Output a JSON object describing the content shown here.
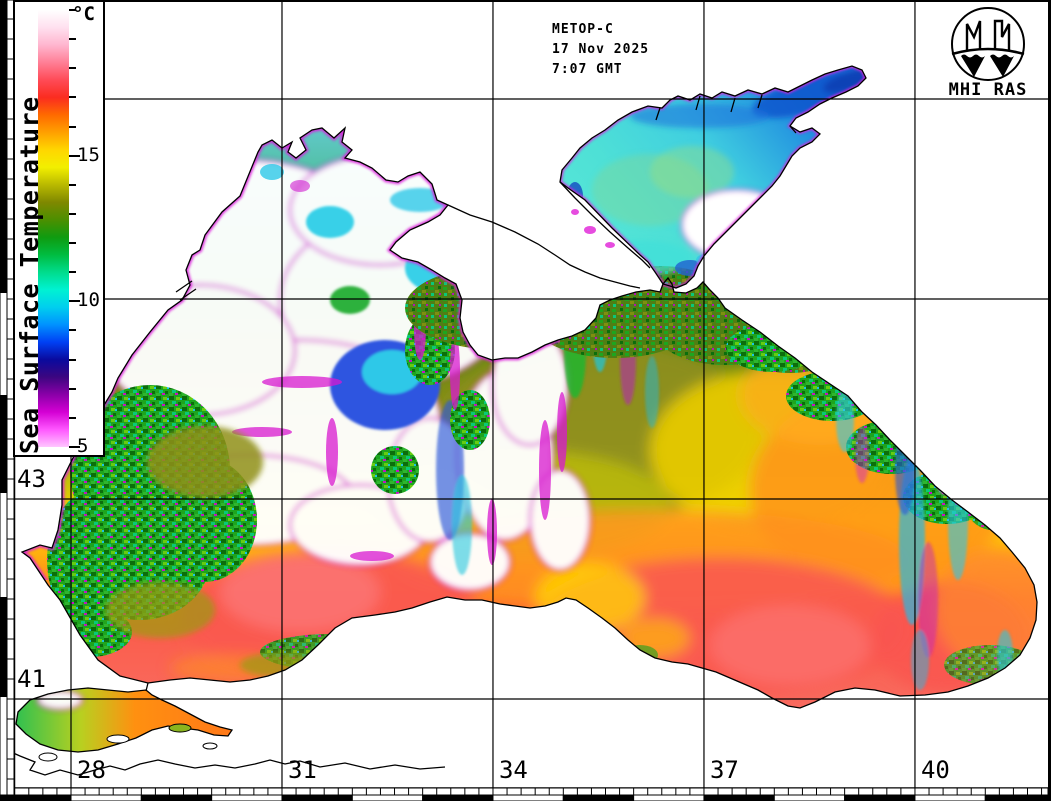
{
  "header": {
    "line1": "METOP-C",
    "line2": "17 Nov 2025",
    "line3": "7:07 GMT"
  },
  "logo": {
    "caption": "MHI RAS"
  },
  "colorbar": {
    "title": "Sea Surface Temperature",
    "unit": "°C",
    "min": 5,
    "max": 20,
    "minor_tick_step": 1,
    "labeled_ticks": [
      15,
      10,
      5
    ],
    "stops": [
      {
        "at": 0.0,
        "color": "#ffffff"
      },
      {
        "at": 0.04,
        "color": "#ffe0ef"
      },
      {
        "at": 0.08,
        "color": "#ffb6cf"
      },
      {
        "at": 0.12,
        "color": "#ff7f96"
      },
      {
        "at": 0.16,
        "color": "#ff4b57"
      },
      {
        "at": 0.2,
        "color": "#fb2c20"
      },
      {
        "at": 0.24,
        "color": "#ff6a00"
      },
      {
        "at": 0.28,
        "color": "#ffa000"
      },
      {
        "at": 0.32,
        "color": "#ffd600"
      },
      {
        "at": 0.36,
        "color": "#f2ef00"
      },
      {
        "at": 0.4,
        "color": "#b9b900"
      },
      {
        "at": 0.44,
        "color": "#7f8800"
      },
      {
        "at": 0.48,
        "color": "#4c8f00"
      },
      {
        "at": 0.52,
        "color": "#0f9b10"
      },
      {
        "at": 0.56,
        "color": "#00bc40"
      },
      {
        "at": 0.6,
        "color": "#00dc8c"
      },
      {
        "at": 0.64,
        "color": "#00f2d2"
      },
      {
        "at": 0.68,
        "color": "#00cfee"
      },
      {
        "at": 0.72,
        "color": "#0092ff"
      },
      {
        "at": 0.76,
        "color": "#0040f4"
      },
      {
        "at": 0.8,
        "color": "#0a0a9e"
      },
      {
        "at": 0.84,
        "color": "#3c0680"
      },
      {
        "at": 0.88,
        "color": "#8a00a8"
      },
      {
        "at": 0.92,
        "color": "#d400d4"
      },
      {
        "at": 0.96,
        "color": "#ff57ff"
      },
      {
        "at": 1.0,
        "color": "#ffc6ff"
      }
    ]
  },
  "axes": {
    "lon_ticks": [
      {
        "value": 28,
        "label": "28"
      },
      {
        "value": 31,
        "label": "31"
      },
      {
        "value": 34,
        "label": "34"
      },
      {
        "value": 37,
        "label": "37"
      },
      {
        "value": 40,
        "label": "40"
      }
    ],
    "lat_ticks": [
      {
        "value": 43,
        "label": "43"
      },
      {
        "value": 41,
        "label": "41"
      }
    ],
    "lon_gridlines": [
      28,
      31,
      34,
      37,
      40
    ],
    "lat_gridlines": [
      47,
      45,
      43,
      41
    ]
  },
  "colors": {
    "land": "#ffffff",
    "coastline": "#000000",
    "grid": "#000000",
    "cloud_fringe_magenta": "#dd22dd",
    "azov_cold_blue": "#2290e0",
    "warm_core_red": "#fa5a50",
    "basin_khaki": "#8f8f1e"
  }
}
